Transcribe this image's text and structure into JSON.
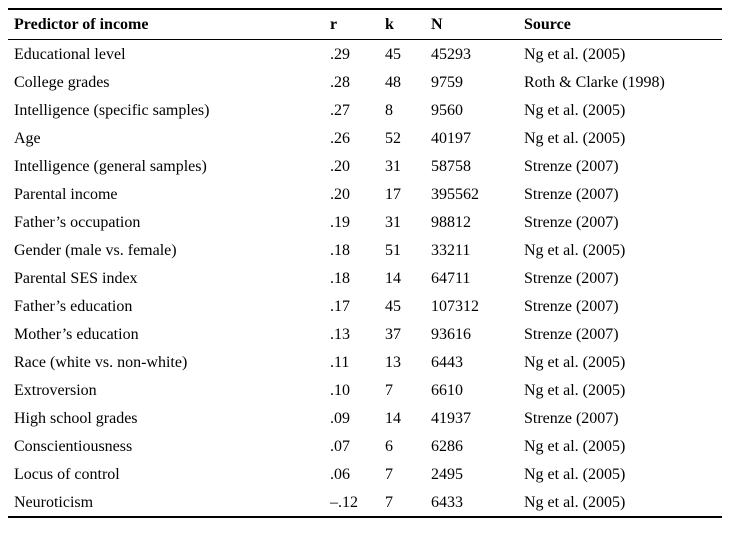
{
  "table": {
    "headers": [
      "Predictor of income",
      "r",
      "k",
      "N",
      "Source"
    ],
    "rows": [
      {
        "predictor": "Educational level",
        "r": ".29",
        "k": "45",
        "n": "45293",
        "source": "Ng et al. (2005)"
      },
      {
        "predictor": "College grades",
        "r": ".28",
        "k": "48",
        "n": "9759",
        "source": "Roth & Clarke (1998)"
      },
      {
        "predictor": "Intelligence (specific samples)",
        "r": ".27",
        "k": "8",
        "n": "9560",
        "source": "Ng et al. (2005)"
      },
      {
        "predictor": "Age",
        "r": ".26",
        "k": "52",
        "n": "40197",
        "source": "Ng et al. (2005)"
      },
      {
        "predictor": "Intelligence (general samples)",
        "r": ".20",
        "k": "31",
        "n": "58758",
        "source": "Strenze (2007)"
      },
      {
        "predictor": "Parental income",
        "r": ".20",
        "k": "17",
        "n": "395562",
        "source": "Strenze (2007)"
      },
      {
        "predictor": "Father’s occupation",
        "r": ".19",
        "k": "31",
        "n": "98812",
        "source": "Strenze (2007)"
      },
      {
        "predictor": "Gender (male vs. female)",
        "r": ".18",
        "k": "51",
        "n": "33211",
        "source": "Ng et al. (2005)"
      },
      {
        "predictor": "Parental SES index",
        "r": ".18",
        "k": "14",
        "n": "64711",
        "source": "Strenze (2007)"
      },
      {
        "predictor": "Father’s education",
        "r": ".17",
        "k": "45",
        "n": "107312",
        "source": "Strenze (2007)"
      },
      {
        "predictor": "Mother’s education",
        "r": ".13",
        "k": "37",
        "n": "93616",
        "source": "Strenze (2007)"
      },
      {
        "predictor": "Race (white vs. non-white)",
        "r": ".11",
        "k": "13",
        "n": "6443",
        "source": "Ng et al. (2005)"
      },
      {
        "predictor": "Extroversion",
        "r": ".10",
        "k": "7",
        "n": "6610",
        "source": "Ng et al. (2005)"
      },
      {
        "predictor": "High school grades",
        "r": ".09",
        "k": "14",
        "n": "41937",
        "source": "Strenze (2007)"
      },
      {
        "predictor": "Conscientiousness",
        "r": ".07",
        "k": "6",
        "n": "6286",
        "source": "Ng et al. (2005)"
      },
      {
        "predictor": "Locus of control",
        "r": ".06",
        "k": "7",
        "n": "2495",
        "source": "Ng et al. (2005)"
      },
      {
        "predictor": "Neuroticism",
        "r": "–.12",
        "k": "7",
        "n": "6433",
        "source": "Ng et al. (2005)"
      }
    ]
  }
}
